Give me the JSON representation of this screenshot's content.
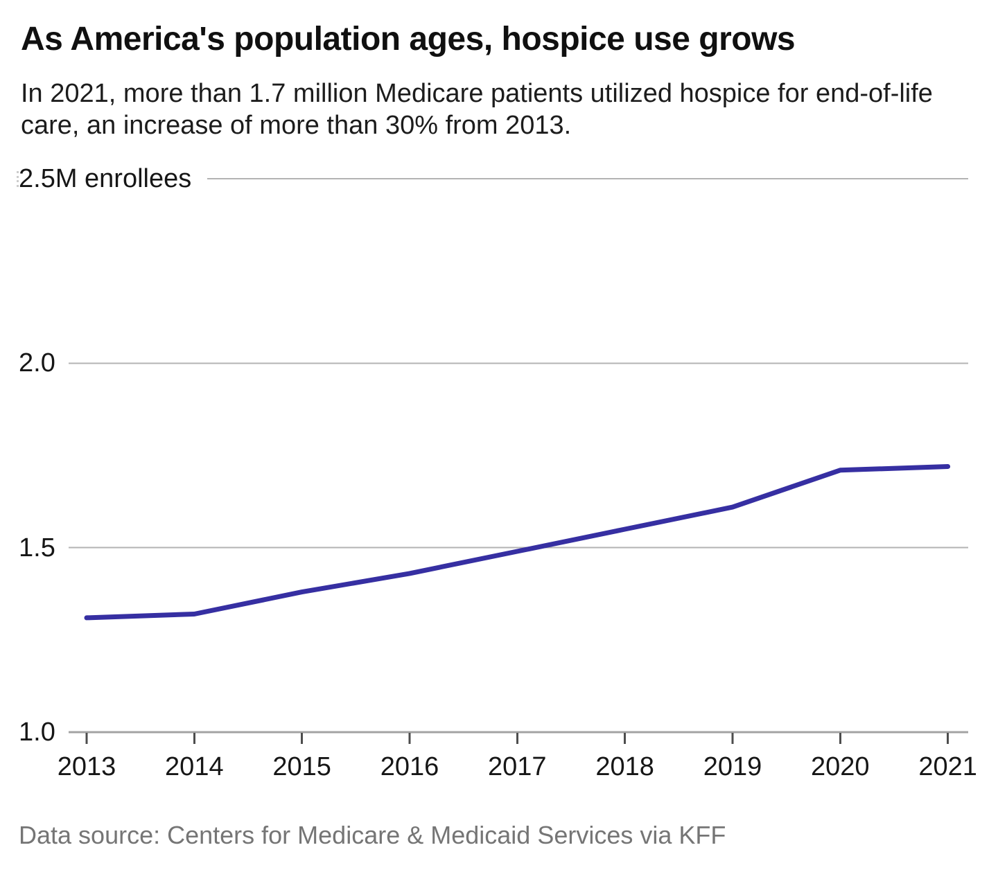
{
  "header": {
    "title": "As America's population ages, hospice use grows",
    "subtitle": "In 2021, more than 1.7 million Medicare patients utilized hospice for end-of-life care, an increase of more than 30% from 2013."
  },
  "chart_data": {
    "type": "line",
    "title": "As America's population ages, hospice use grows",
    "subtitle": "In 2021, more than 1.7 million Medicare patients utilized hospice for end-of-life care, an increase of more than 30% from 2013.",
    "x": [
      "2013",
      "2014",
      "2015",
      "2016",
      "2017",
      "2018",
      "2019",
      "2020",
      "2021"
    ],
    "series": [
      {
        "name": "enrollees",
        "values": [
          1.31,
          1.32,
          1.38,
          1.43,
          1.49,
          1.55,
          1.61,
          1.71,
          1.72
        ]
      }
    ],
    "xlabel": "",
    "ylabel": "",
    "ylim": [
      1.0,
      2.5
    ],
    "y_ticks": [
      {
        "value": 1.0,
        "label": "1.0"
      },
      {
        "value": 1.5,
        "label": "1.5"
      },
      {
        "value": 2.0,
        "label": "2.0"
      },
      {
        "value": 2.5,
        "label": "2.5M enrollees"
      }
    ],
    "grid": true,
    "legend_position": "none",
    "colors": {
      "line": "#362fa2",
      "gridline": "#b3b3b3",
      "baseline": "#a3a3a3",
      "tick": "#4d4d4d",
      "axis_text": "#161616",
      "footer_text": "#757575"
    }
  },
  "footer": {
    "source": "Data source: Centers for Medicare & Medicaid Services via KFF"
  }
}
